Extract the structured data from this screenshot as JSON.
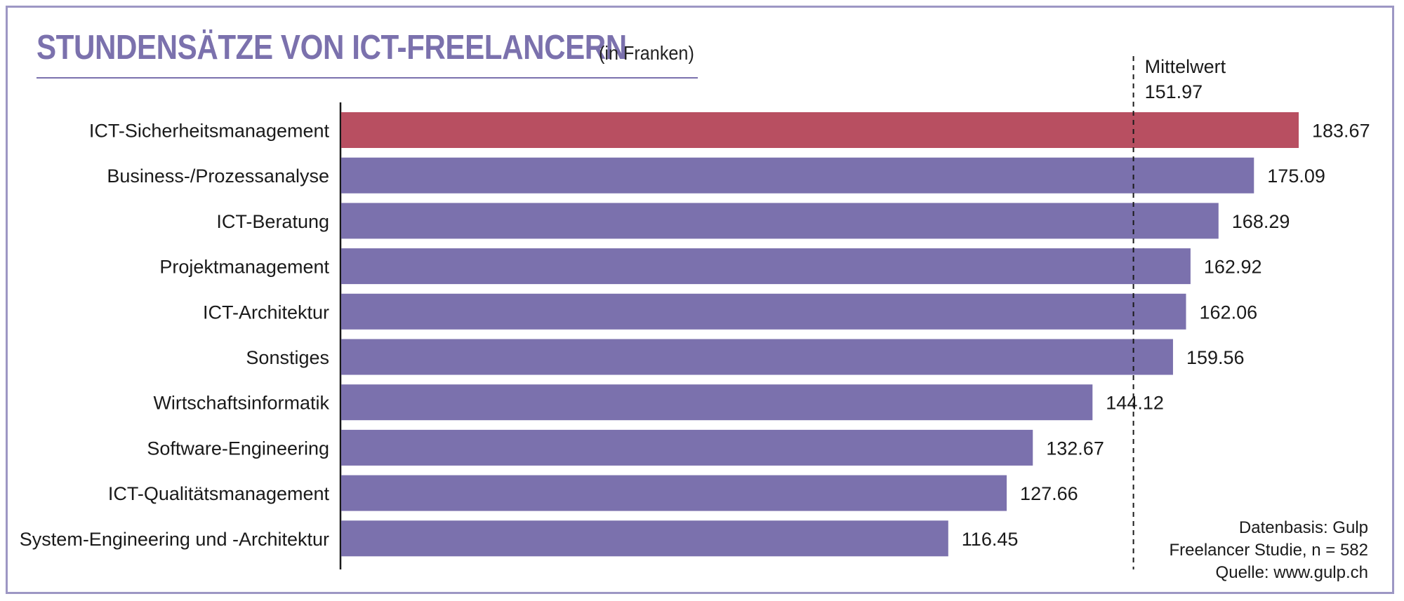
{
  "title": "STUNDENSÄTZE VON ICT-FREELANCERN",
  "subtitle": "(in Franken)",
  "colors": {
    "highlight": "#b84f61",
    "bar": "#7b71ad",
    "title": "#7b71ad",
    "frame": "#9d97c4"
  },
  "chart_data": {
    "type": "bar",
    "orientation": "horizontal",
    "categories": [
      "ICT-Sicherheitsmanagement",
      "Business-/Prozessanalyse",
      "ICT-Beratung",
      "Projektmanagement",
      "ICT-Architektur",
      "Sonstiges",
      "Wirtschaftsinformatik",
      "Software-Engineering",
      "ICT-Qualitätsmanagement",
      "System-Engineering und -Architektur"
    ],
    "values": [
      183.67,
      175.09,
      168.29,
      162.92,
      162.06,
      159.56,
      144.12,
      132.67,
      127.66,
      116.45
    ],
    "value_labels": [
      "183.67",
      "175.09",
      "168.29",
      "162.92",
      "162.06",
      "159.56",
      "144.12",
      "132.67",
      "127.66",
      "116.45"
    ],
    "highlight_index": 0,
    "xlim": [
      0,
      183.67
    ],
    "mean": {
      "label": "Mittelwert",
      "value": 151.97,
      "value_label": "151.97",
      "style": "dashed"
    },
    "title": "STUNDENSÄTZE VON ICT-FREELANCERN",
    "subtitle": "(in Franken)",
    "xlabel": "",
    "ylabel": "",
    "grid": false,
    "legend": "none"
  },
  "source": {
    "line1": "Datenbasis: Gulp",
    "line2": "Freelancer Studie, n = 582",
    "line3": "Quelle: www.gulp.ch"
  }
}
